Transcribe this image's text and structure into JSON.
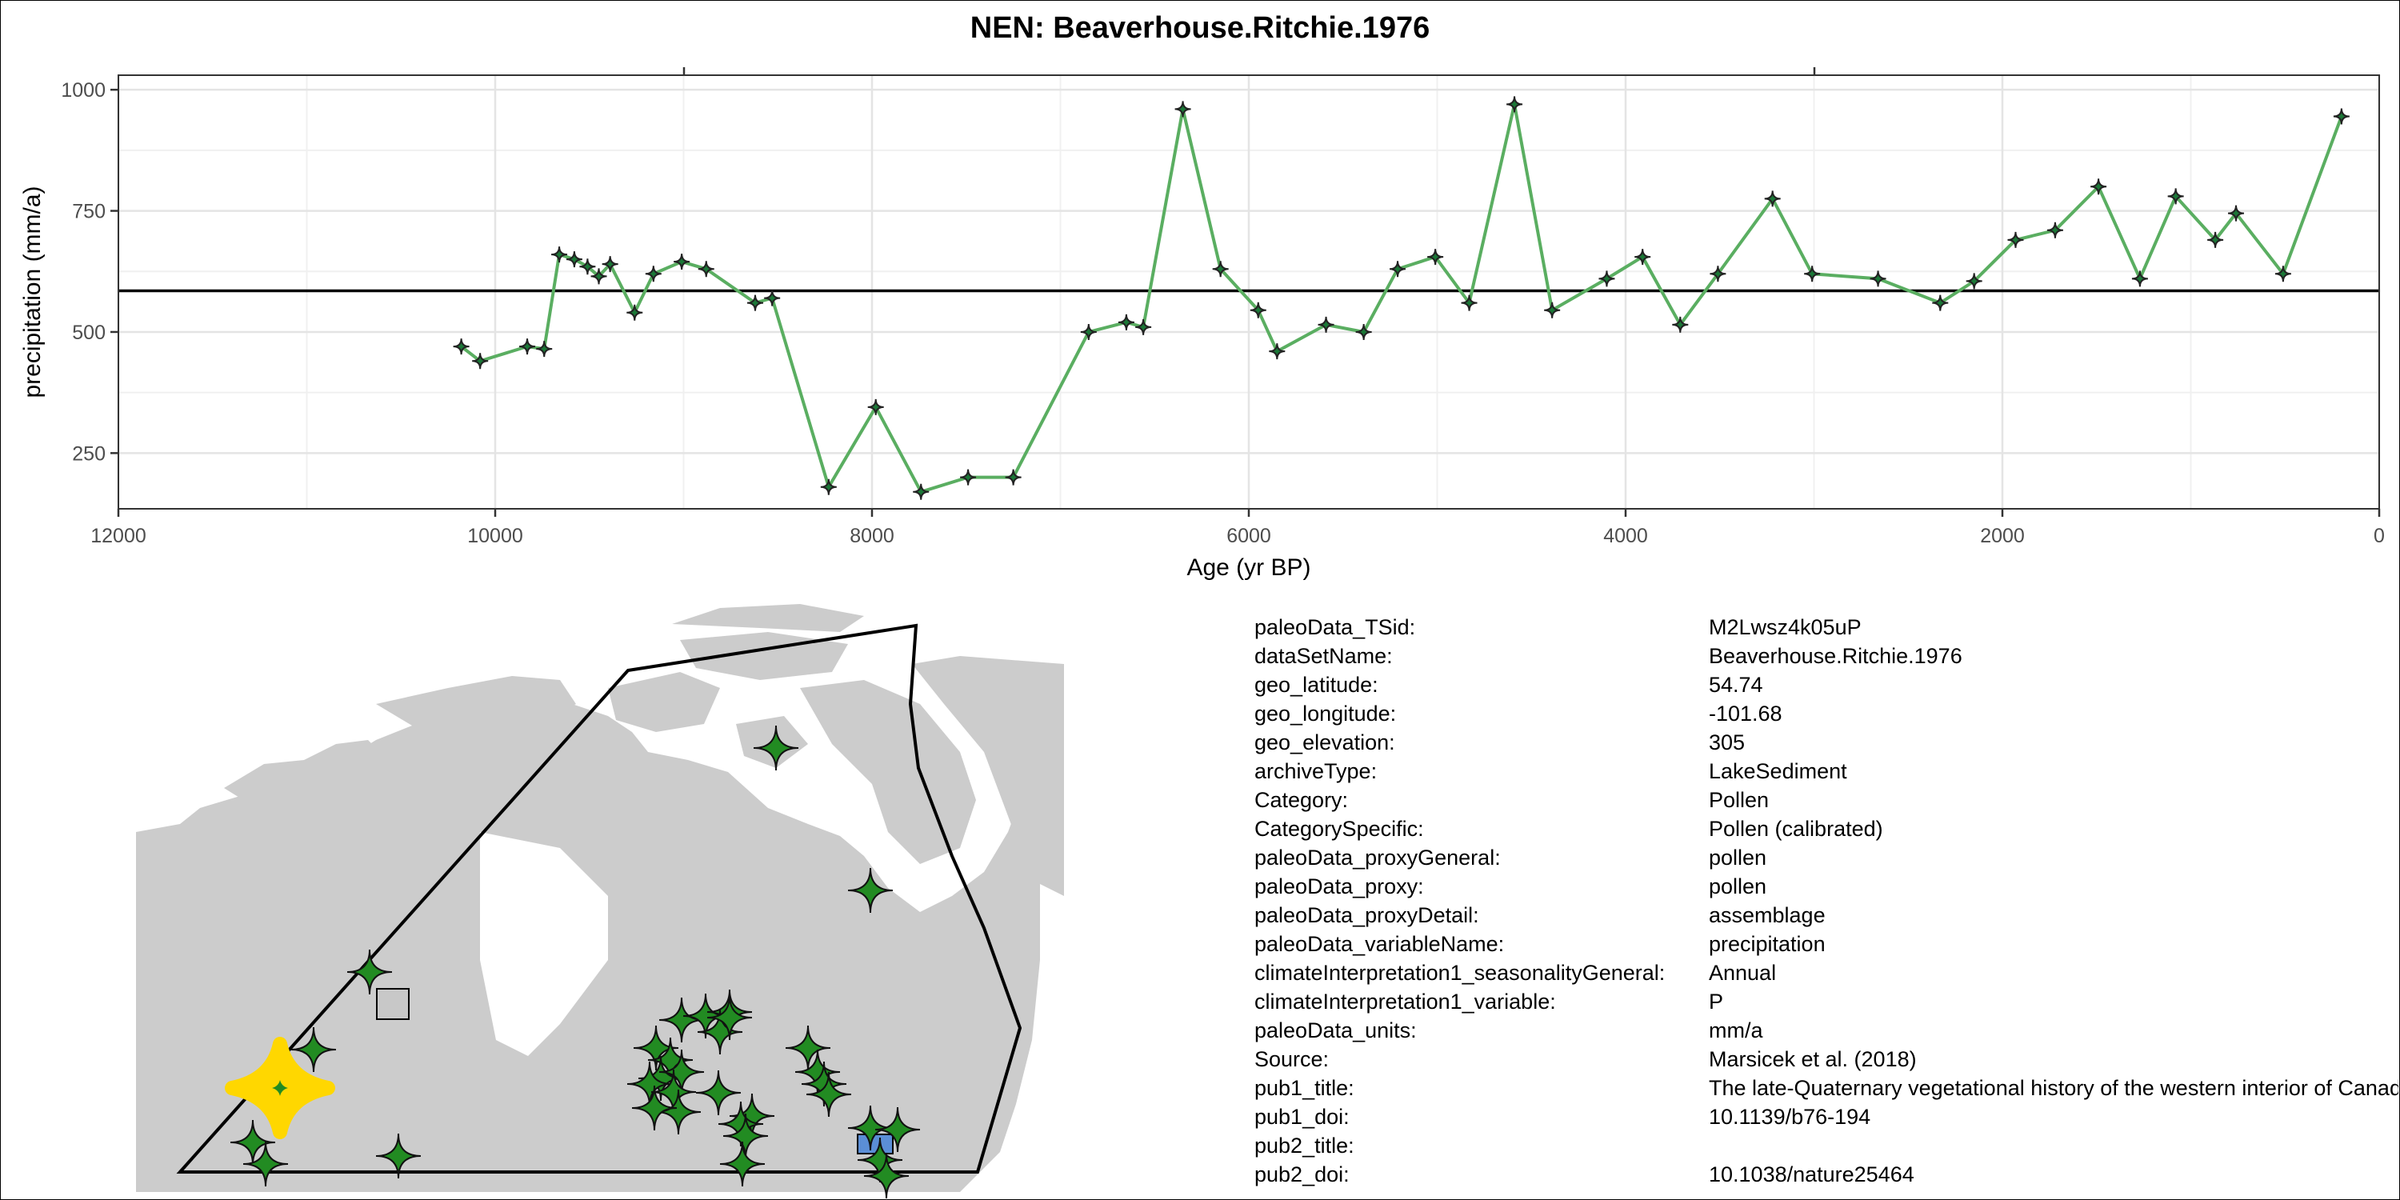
{
  "chart_data": {
    "type": "line",
    "title": "NEN: Beaverhouse.Ritchie.1976",
    "xlabel": "Age (yr BP)",
    "ylabel": "precipitation (mm/a)",
    "xlim": [
      12000,
      0
    ],
    "ylim": [
      135,
      1030
    ],
    "x_reversed": true,
    "x_ticks": [
      12000,
      10000,
      8000,
      6000,
      4000,
      2000,
      0
    ],
    "x_tick_labels": [
      "12000",
      "10000",
      "8000",
      "6000",
      "4000",
      "2000",
      "0"
    ],
    "y_ticks": [
      250,
      500,
      750,
      1000
    ],
    "y_tick_labels": [
      "250",
      "500",
      "750",
      "1000"
    ],
    "grid": true,
    "reference_line_y": 585,
    "line_color": "#5aae61",
    "marker_color": "#1b7837",
    "points": [
      {
        "x": 10180,
        "y": 470
      },
      {
        "x": 10080,
        "y": 440
      },
      {
        "x": 9830,
        "y": 470
      },
      {
        "x": 9740,
        "y": 465
      },
      {
        "x": 9660,
        "y": 660
      },
      {
        "x": 9580,
        "y": 650
      },
      {
        "x": 9510,
        "y": 635
      },
      {
        "x": 9450,
        "y": 615
      },
      {
        "x": 9390,
        "y": 640
      },
      {
        "x": 9260,
        "y": 540
      },
      {
        "x": 9160,
        "y": 620
      },
      {
        "x": 9010,
        "y": 645
      },
      {
        "x": 8880,
        "y": 630
      },
      {
        "x": 8620,
        "y": 560
      },
      {
        "x": 8530,
        "y": 570
      },
      {
        "x": 8230,
        "y": 180
      },
      {
        "x": 7980,
        "y": 345
      },
      {
        "x": 7740,
        "y": 170
      },
      {
        "x": 7490,
        "y": 200
      },
      {
        "x": 7250,
        "y": 200
      },
      {
        "x": 6850,
        "y": 500
      },
      {
        "x": 6650,
        "y": 520
      },
      {
        "x": 6560,
        "y": 510
      },
      {
        "x": 6350,
        "y": 960
      },
      {
        "x": 6150,
        "y": 630
      },
      {
        "x": 5950,
        "y": 545
      },
      {
        "x": 5850,
        "y": 460
      },
      {
        "x": 5590,
        "y": 515
      },
      {
        "x": 5390,
        "y": 500
      },
      {
        "x": 5210,
        "y": 630
      },
      {
        "x": 5010,
        "y": 655
      },
      {
        "x": 4830,
        "y": 560
      },
      {
        "x": 4590,
        "y": 970
      },
      {
        "x": 4390,
        "y": 545
      },
      {
        "x": 4100,
        "y": 610
      },
      {
        "x": 3910,
        "y": 655
      },
      {
        "x": 3710,
        "y": 515
      },
      {
        "x": 3510,
        "y": 620
      },
      {
        "x": 3220,
        "y": 775
      },
      {
        "x": 3010,
        "y": 620
      },
      {
        "x": 2660,
        "y": 610
      },
      {
        "x": 2330,
        "y": 560
      },
      {
        "x": 2150,
        "y": 605
      },
      {
        "x": 1930,
        "y": 690
      },
      {
        "x": 1720,
        "y": 710
      },
      {
        "x": 1490,
        "y": 800
      },
      {
        "x": 1270,
        "y": 610
      },
      {
        "x": 1080,
        "y": 780
      },
      {
        "x": 870,
        "y": 690
      },
      {
        "x": 760,
        "y": 745
      },
      {
        "x": 510,
        "y": 620
      },
      {
        "x": 200,
        "y": 945
      }
    ]
  },
  "map": {
    "land_color": "#cccccc",
    "marker_color": "#228b22",
    "highlight_color": "#ffd700",
    "polygon_stroke": "#000000",
    "square_marker_color": "#c8c8c8",
    "blue_marker_color": "#5b8ed6"
  },
  "metadata": [
    {
      "key": "paleoData_TSid:",
      "value": "M2Lwsz4k05uP"
    },
    {
      "key": "dataSetName:",
      "value": "Beaverhouse.Ritchie.1976"
    },
    {
      "key": "geo_latitude:",
      "value": "54.74"
    },
    {
      "key": "geo_longitude:",
      "value": "-101.68"
    },
    {
      "key": "geo_elevation:",
      "value": "305"
    },
    {
      "key": "archiveType:",
      "value": "LakeSediment"
    },
    {
      "key": "Category:",
      "value": "Pollen"
    },
    {
      "key": "CategorySpecific:",
      "value": "Pollen (calibrated)"
    },
    {
      "key": "paleoData_proxyGeneral:",
      "value": "pollen"
    },
    {
      "key": "paleoData_proxy:",
      "value": "pollen"
    },
    {
      "key": "paleoData_proxyDetail:",
      "value": "assemblage"
    },
    {
      "key": "paleoData_variableName:",
      "value": "precipitation"
    },
    {
      "key": "climateInterpretation1_seasonalityGeneral:",
      "value": "Annual"
    },
    {
      "key": "climateInterpretation1_variable:",
      "value": "P"
    },
    {
      "key": "paleoData_units:",
      "value": "mm/a"
    },
    {
      "key": "Source:",
      "value": "Marsicek et al. (2018)"
    },
    {
      "key": "pub1_title:",
      "value": "The late-Quaternary vegetational history of the western interior of Canada"
    },
    {
      "key": "pub1_doi:",
      "value": "10.1139/b76-194"
    },
    {
      "key": "pub2_title:",
      "value": ""
    },
    {
      "key": "pub2_doi:",
      "value": "10.1038/nature25464"
    }
  ]
}
